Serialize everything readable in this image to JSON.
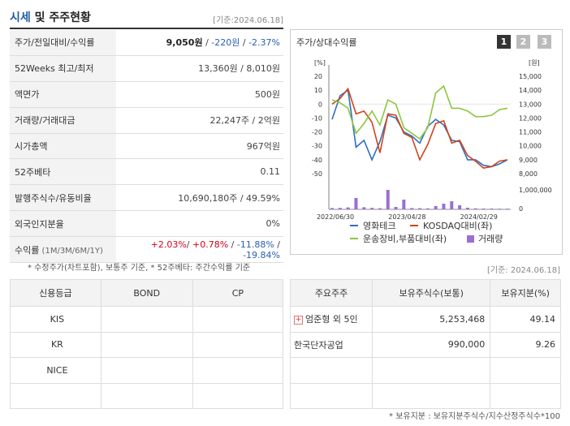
{
  "header": {
    "title_main": "시세",
    "title_rest": " 및 주주현황",
    "date": "[기준:2024.06.18]"
  },
  "info": [
    {
      "label": "주가/전일대비/수익률",
      "parts": [
        {
          "t": "9,050원",
          "c": "bold"
        },
        {
          "t": " / ",
          "c": ""
        },
        {
          "t": "-220원",
          "c": "blu"
        },
        {
          "t": " / ",
          "c": ""
        },
        {
          "t": "-2.37%",
          "c": "blu"
        }
      ]
    },
    {
      "label": "52Weeks 최고/최저",
      "parts": [
        {
          "t": "13,360원 / 8,010원",
          "c": ""
        }
      ]
    },
    {
      "label": "액면가",
      "parts": [
        {
          "t": "500원",
          "c": ""
        }
      ]
    },
    {
      "label": "거래량/거래대금",
      "parts": [
        {
          "t": "22,247주 / 2억원",
          "c": ""
        }
      ]
    },
    {
      "label": "시가총액",
      "parts": [
        {
          "t": "967억원",
          "c": ""
        }
      ]
    },
    {
      "label": "52주베타",
      "parts": [
        {
          "t": "0.11",
          "c": ""
        }
      ]
    },
    {
      "label": "발행주식수/유동비율",
      "parts": [
        {
          "t": "10,690,180주 / 49.59%",
          "c": ""
        }
      ]
    },
    {
      "label": "외국인지분율",
      "parts": [
        {
          "t": "0%",
          "c": ""
        }
      ]
    },
    {
      "label": "수익률",
      "sublabel": "(1M/3M/6M/1Y)",
      "parts": [
        {
          "t": "+2.03%",
          "c": "red"
        },
        {
          "t": "/ ",
          "c": ""
        },
        {
          "t": "+0.78%",
          "c": "red"
        },
        {
          "t": " / ",
          "c": ""
        },
        {
          "t": "-11.88%",
          "c": "blu"
        },
        {
          "t": " / ",
          "c": ""
        },
        {
          "t": "-19.84%",
          "c": "blu"
        }
      ]
    }
  ],
  "note1": "* 수정주가(차트포함), 보통주 기준, * 52주베타: 주간수익률 기준",
  "chart_panel": {
    "title": "주가/상대수익률",
    "tabs": [
      "1",
      "2",
      "3"
    ]
  },
  "chart_data": {
    "type": "line",
    "y_left_label": "[%]",
    "y_right_label": "[원]",
    "y_left_ticks": [
      "20",
      "10",
      "0",
      "-10",
      "-20",
      "-30",
      "-40",
      "-50"
    ],
    "y_right_ticks": [
      "15,000",
      "14,000",
      "13,000",
      "12,000",
      "11,000",
      "10,000",
      "9,000",
      "8,000"
    ],
    "vol_ticks": [
      "1,000,000",
      "0"
    ],
    "x_ticks": [
      "2022/06/30",
      "2023/04/28",
      "2024/02/29"
    ],
    "ylim_left": [
      -50,
      20
    ],
    "ylim_right": [
      8000,
      15000
    ],
    "series": [
      {
        "name": "영화테크",
        "color": "#2e6fc5",
        "values": [
          -11,
          6,
          10,
          -31,
          -26,
          -40,
          -27,
          -8,
          -10,
          -20,
          -23,
          -28,
          -16,
          -11,
          -15,
          -26,
          -27,
          -40,
          -40,
          -44,
          -45,
          -43,
          -40
        ]
      },
      {
        "name": "KOSDAQ대비(좌)",
        "color": "#d0451b",
        "values": [
          0,
          4,
          11,
          -7,
          -5,
          -13,
          -35,
          -7,
          -8,
          -21,
          -24,
          -40,
          -29,
          -14,
          -12,
          -28,
          -26,
          -37,
          -41,
          -46,
          -45,
          -41,
          -40
        ]
      },
      {
        "name": "운송장비,부품대비(좌)",
        "color": "#8cc63f",
        "values": [
          3,
          1,
          -3,
          -21,
          -14,
          -5,
          -15,
          3,
          0,
          -17,
          -21,
          -25,
          -17,
          8,
          13,
          -3,
          -3,
          -5,
          -9,
          -9,
          -8,
          -4,
          -3
        ]
      },
      {
        "name": "거래량",
        "color": "#9b6fd1",
        "values": [
          80000,
          90000,
          120000,
          700000,
          130000,
          90000,
          70000,
          1200000,
          150000,
          600000,
          80000,
          70000,
          60000,
          200000,
          350000,
          500000,
          250000,
          100000,
          60000,
          50000,
          50000,
          40000,
          40000
        ]
      }
    ]
  },
  "note2": "[기준: 2024.06.18]",
  "credit": {
    "headers": [
      "신용등급",
      "BOND",
      "CP"
    ],
    "rows": [
      [
        "KIS",
        "",
        ""
      ],
      [
        "KR",
        "",
        ""
      ],
      [
        "NICE",
        "",
        ""
      ],
      [
        "",
        "",
        ""
      ]
    ]
  },
  "holders": {
    "headers": [
      "주요주주",
      "보유주식수(보통)",
      "보유지분(%)"
    ],
    "rows": [
      [
        "엄준형 외 5인",
        "5,253,468",
        "49.14"
      ],
      [
        "한국단자공업",
        "990,000",
        "9.26"
      ],
      [
        "",
        "",
        ""
      ],
      [
        "",
        "",
        ""
      ]
    ]
  },
  "note3": "* 보유지분 : 보유지분주식수/지수산정주식수*100"
}
